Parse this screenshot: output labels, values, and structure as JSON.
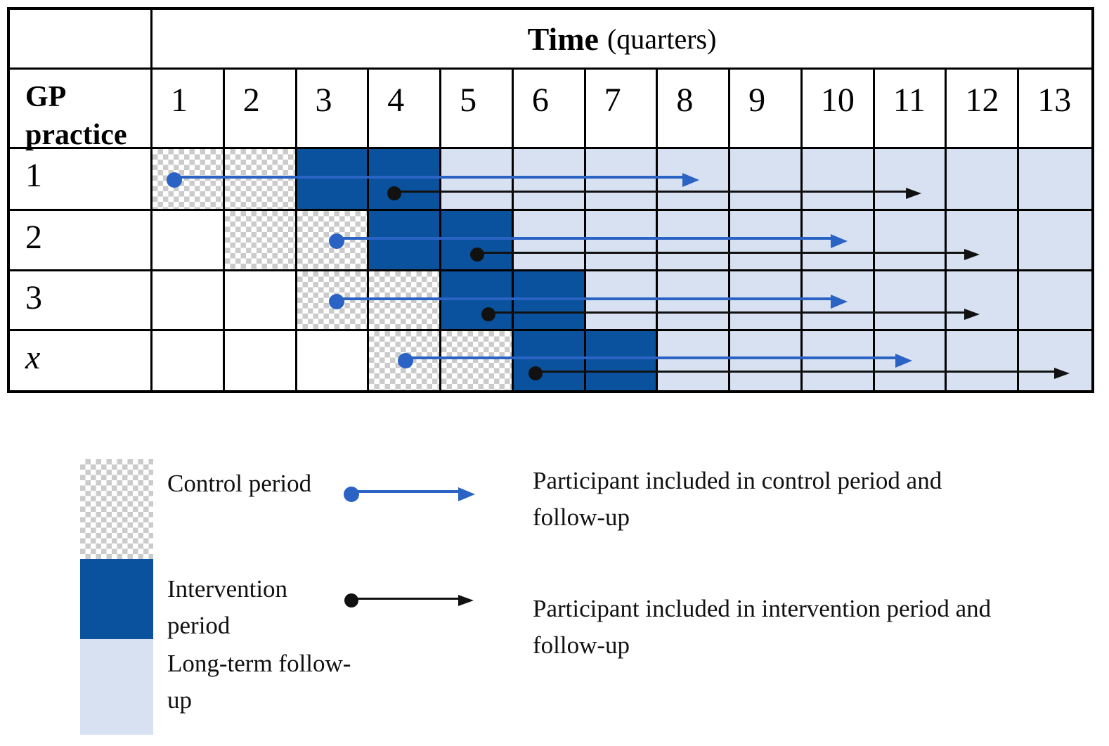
{
  "figure": {
    "header": {
      "time_bold": "Time",
      "time_unit": "(quarters)"
    },
    "gp_label": "GP practice",
    "quarters": [
      "1",
      "2",
      "3",
      "4",
      "5",
      "6",
      "7",
      "8",
      "9",
      "10",
      "11",
      "12",
      "13"
    ],
    "rows": [
      {
        "label": "1",
        "italic": false,
        "control": [
          1,
          2
        ],
        "intervention": [
          3,
          4
        ],
        "followup_from": 5,
        "blue_arrow": {
          "start_quarter": 1.3,
          "end_quarter": 8.55
        },
        "black_arrow": {
          "start_quarter": 4.35,
          "end_quarter": 11.65
        }
      },
      {
        "label": "2",
        "italic": false,
        "control": [
          2,
          3
        ],
        "intervention": [
          4,
          5
        ],
        "followup_from": 6,
        "blue_arrow": {
          "start_quarter": 3.55,
          "end_quarter": 10.6
        },
        "black_arrow": {
          "start_quarter": 5.5,
          "end_quarter": 12.45
        }
      },
      {
        "label": "3",
        "italic": false,
        "control": [
          3,
          4
        ],
        "intervention": [
          5,
          6
        ],
        "followup_from": 7,
        "blue_arrow": {
          "start_quarter": 3.55,
          "end_quarter": 10.6
        },
        "black_arrow": {
          "start_quarter": 5.65,
          "end_quarter": 12.45
        }
      },
      {
        "label": "x",
        "italic": true,
        "control": [
          4,
          5
        ],
        "intervention": [
          6,
          7
        ],
        "followup_from": 8,
        "blue_arrow": {
          "start_quarter": 4.5,
          "end_quarter": 11.5
        },
        "black_arrow": {
          "start_quarter": 6.3,
          "end_quarter": 13.7
        }
      }
    ]
  },
  "legend": {
    "items": [
      {
        "name": "control-period",
        "label_lines": [
          "Control period",
          ""
        ]
      },
      {
        "name": "intervention-period",
        "label_lines": [
          "Intervention",
          "period"
        ]
      },
      {
        "name": "long-term-follow-up",
        "label_lines": [
          "Long-term follow-",
          "up"
        ]
      }
    ],
    "participant_items": [
      {
        "name": "control-participant",
        "lines": [
          "Participant included in control period and",
          "follow-up"
        ]
      },
      {
        "name": "intervention-participant",
        "lines": [
          "Participant included in intervention period and",
          "follow-up"
        ]
      }
    ]
  },
  "colors": {
    "intervention_blue": "#0a529e",
    "followup_light_blue": "#d7e1f1",
    "checker_gray": "#cbcbcb",
    "participant_blue": "#2b63c4",
    "participant_black": "#111111"
  }
}
